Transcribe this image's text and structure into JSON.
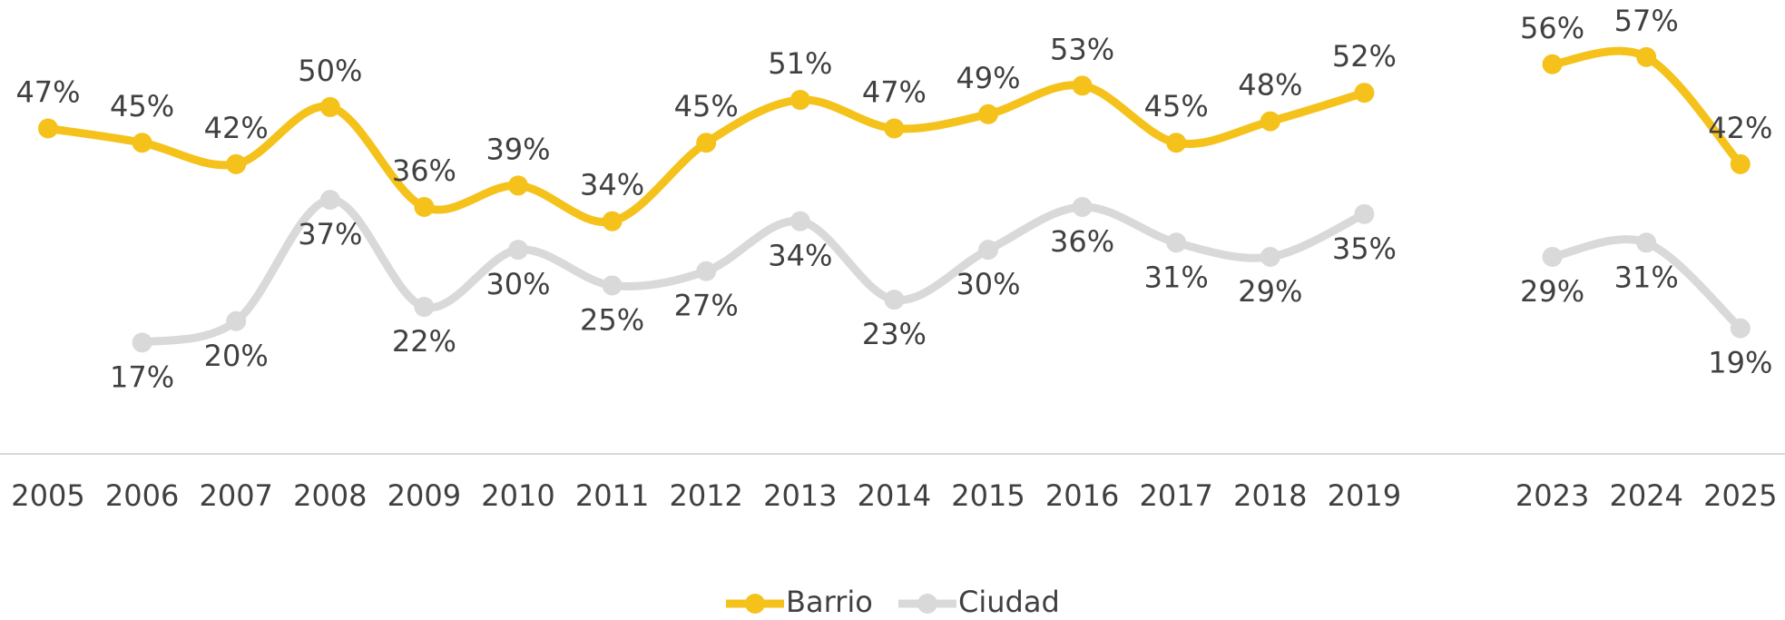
{
  "chart_data": {
    "type": "line",
    "categories": [
      "2005",
      "2006",
      "2007",
      "2008",
      "2009",
      "2010",
      "2011",
      "2012",
      "2013",
      "2014",
      "2015",
      "2016",
      "2017",
      "2018",
      "2019",
      null,
      "2023",
      "2024",
      "2025"
    ],
    "ylim": [
      0,
      65
    ],
    "series": [
      {
        "name": "Barrio",
        "color": "#f5c21b",
        "values": [
          47,
          45,
          42,
          50,
          36,
          39,
          34,
          45,
          51,
          47,
          49,
          53,
          45,
          48,
          52,
          null,
          56,
          57,
          42
        ],
        "value_labels": [
          "47%",
          "45%",
          "42%",
          "50%",
          "36%",
          "39%",
          "34%",
          "45%",
          "51%",
          "47%",
          "49%",
          "53%",
          "45%",
          "48%",
          "52%",
          null,
          "56%",
          "57%",
          "42%"
        ]
      },
      {
        "name": "Ciudad",
        "color": "#d9d9d9",
        "values": [
          null,
          17,
          20,
          37,
          22,
          30,
          25,
          27,
          34,
          23,
          30,
          36,
          31,
          29,
          35,
          null,
          29,
          31,
          19
        ],
        "value_labels": [
          null,
          "17%",
          "20%",
          "37%",
          "22%",
          "30%",
          "25%",
          "27%",
          "34%",
          "23%",
          "30%",
          "36%",
          "31%",
          "29%",
          "35%",
          null,
          "29%",
          "31%",
          "19%"
        ]
      }
    ],
    "legend": "bottom"
  }
}
